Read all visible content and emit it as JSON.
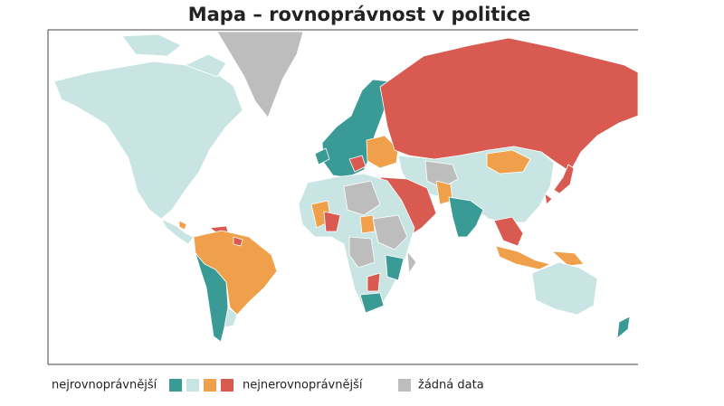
{
  "header": {
    "title": "Mapa – rovnoprávnost v politice"
  },
  "legend": {
    "left_label": "nejrovnoprávnější",
    "right_label": "nejnerovnoprávnější",
    "no_data_label": "žádná data"
  }
}
